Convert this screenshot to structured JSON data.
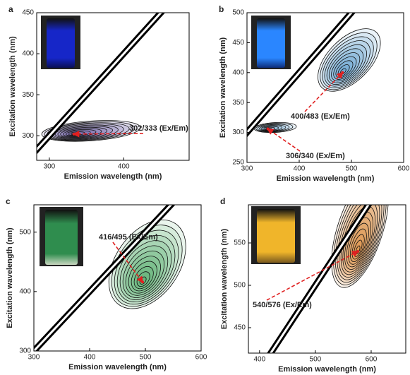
{
  "chart_data": [
    {
      "type": "contour",
      "panel_label": "a",
      "xlabel": "Emission wavelength (nm)",
      "ylabel": "Excitation wavelength (nm)",
      "xlim": [
        283,
        488
      ],
      "ylim": [
        270,
        450
      ],
      "xticks": [
        300,
        400
      ],
      "yticks": [
        300,
        350,
        400,
        450
      ],
      "color": "#4a3f8f",
      "peaks": [
        {
          "x": 333,
          "y": 302,
          "label": "302/333 (Ex/Em)"
        }
      ]
    },
    {
      "type": "contour",
      "panel_label": "b",
      "xlabel": "Emission wavelength (nm)",
      "ylabel": "Excitation wavelength (nm)",
      "xlim": [
        300,
        600
      ],
      "ylim": [
        250,
        500
      ],
      "xticks": [
        300,
        400,
        500,
        600
      ],
      "yticks": [
        250,
        300,
        350,
        400,
        450,
        500
      ],
      "color": "#3a8cc4",
      "peaks": [
        {
          "x": 483,
          "y": 400,
          "label": "400/483 (Ex/Em)"
        },
        {
          "x": 340,
          "y": 306,
          "label": "306/340 (Ex/Em)"
        }
      ]
    },
    {
      "type": "contour",
      "panel_label": "c",
      "xlabel": "Emission wavelength (nm)",
      "ylabel": "Excitation wavelength (nm)",
      "xlim": [
        300,
        600
      ],
      "ylim": [
        300,
        546
      ],
      "xticks": [
        300,
        400,
        500,
        600
      ],
      "yticks": [
        300,
        400,
        500
      ],
      "color": "#2e9a4a",
      "peaks": [
        {
          "x": 495,
          "y": 416,
          "label": "416/495 (Ex/Em)"
        }
      ]
    },
    {
      "type": "contour",
      "panel_label": "d",
      "xlabel": "Emission wavelength (nm)",
      "ylabel": "Excitation wavelength (nm)",
      "xlim": [
        380,
        662
      ],
      "ylim": [
        420,
        595
      ],
      "xticks": [
        400,
        500,
        600
      ],
      "yticks": [
        450,
        500,
        550
      ],
      "color": "#d9812a",
      "peaks": [
        {
          "x": 576,
          "y": 540,
          "label": "540/576 (Ex/Em)"
        }
      ]
    }
  ]
}
